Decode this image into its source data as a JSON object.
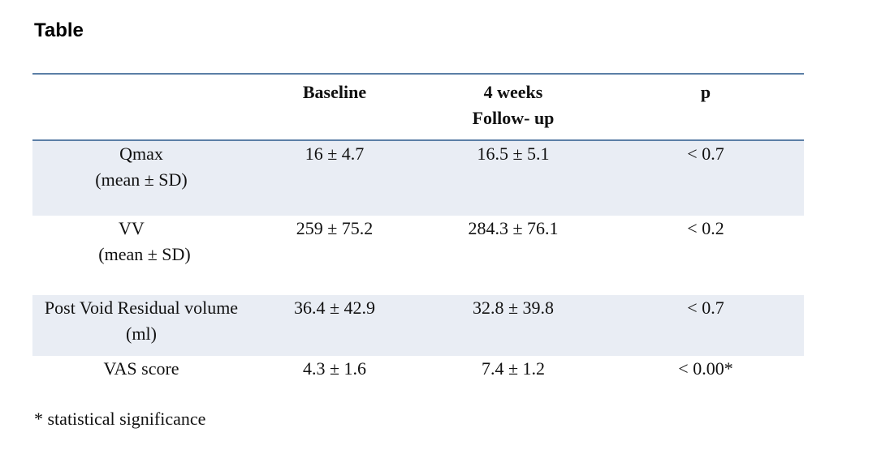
{
  "title": "Table",
  "table": {
    "headers": [
      "",
      "Baseline",
      "4 weeks",
      "p"
    ],
    "header_col2_line2": "Follow- up",
    "rows": [
      {
        "label": "Qmax",
        "sublabel": "(mean ± SD)",
        "baseline": "16 ± 4.7",
        "followup": "16.5 ± 5.1",
        "p": "< 0.7"
      },
      {
        "label": "VV",
        "sublabel": "(mean ± SD)",
        "baseline": "259 ± 75.2",
        "followup": "284.3 ± 76.1",
        "p": "< 0.2"
      },
      {
        "label": "Post Void Residual volume",
        "sublabel": "(ml)",
        "baseline": "36.4 ± 42.9",
        "followup": "32.8 ± 39.8",
        "p": "< 0.7"
      },
      {
        "label": "VAS score",
        "sublabel": "",
        "baseline": "4.3 ± 1.6",
        "followup": "7.4 ± 1.2",
        "p": "< 0.00*"
      }
    ]
  },
  "footnote": "* statistical significance",
  "colors": {
    "rule": "#5b7fa6",
    "row_shade": "#e9edf4"
  }
}
